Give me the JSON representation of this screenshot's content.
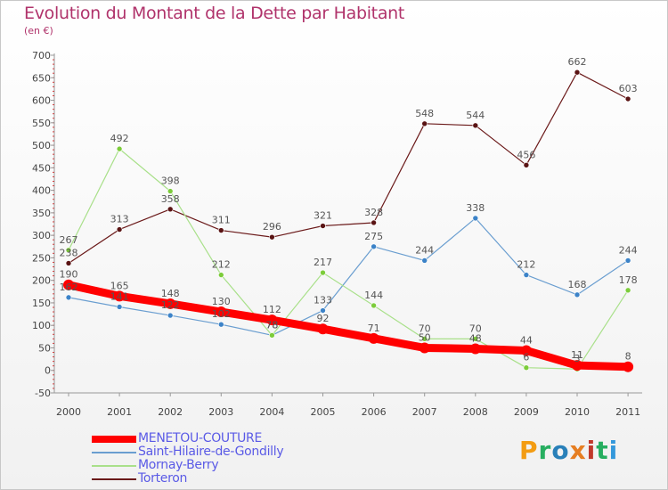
{
  "title": "Evolution du Montant de la Dette par Habitant",
  "unit": "(en €)",
  "logo": {
    "text": "Proxiti",
    "colors": [
      "#f39c12",
      "#27ae60",
      "#2980b9",
      "#e67e22",
      "#c0392b",
      "#27ae60",
      "#3498db"
    ]
  },
  "chart_data": {
    "type": "line",
    "x": [
      "2000",
      "2001",
      "2002",
      "2003",
      "2004",
      "2005",
      "2006",
      "2007",
      "2008",
      "2009",
      "2010",
      "2011"
    ],
    "ylim": [
      -50,
      700
    ],
    "yticks": [
      -50,
      0,
      50,
      100,
      150,
      200,
      250,
      300,
      350,
      400,
      450,
      500,
      550,
      600,
      650,
      700
    ],
    "grid": false,
    "legend": "bottom-left",
    "series": [
      {
        "name": "Torteron",
        "color": "#6b1a1a",
        "marker": "#5a1414",
        "width": 1.2,
        "radius": 3,
        "values": [
          238,
          313,
          358,
          311,
          296,
          321,
          328,
          548,
          544,
          456,
          662,
          603
        ]
      },
      {
        "name": "Saint-Hilaire-de-Gondilly",
        "color": "#6a9ed0",
        "marker": "#3c83c8",
        "width": 1.2,
        "radius": 3,
        "values": [
          162,
          141,
          122,
          102,
          78,
          133,
          275,
          244,
          338,
          212,
          168,
          244
        ]
      },
      {
        "name": "Mornay-Berry",
        "color": "#a9e08a",
        "marker": "#7ccc3a",
        "width": 1.2,
        "radius": 3,
        "values": [
          267,
          492,
          398,
          212,
          78,
          217,
          144,
          70,
          70,
          6,
          3,
          178
        ]
      },
      {
        "name": "MENETOU-COUTURE",
        "color": "#ff0000",
        "marker": "#ff0000",
        "width": 9,
        "radius": 6,
        "values": [
          190,
          165,
          148,
          130,
          112,
          92,
          71,
          50,
          48,
          44,
          11,
          8
        ]
      }
    ],
    "legend_order": [
      "MENETOU-COUTURE",
      "Saint-Hilaire-de-Gondilly",
      "Mornay-Berry",
      "Torteron"
    ]
  }
}
